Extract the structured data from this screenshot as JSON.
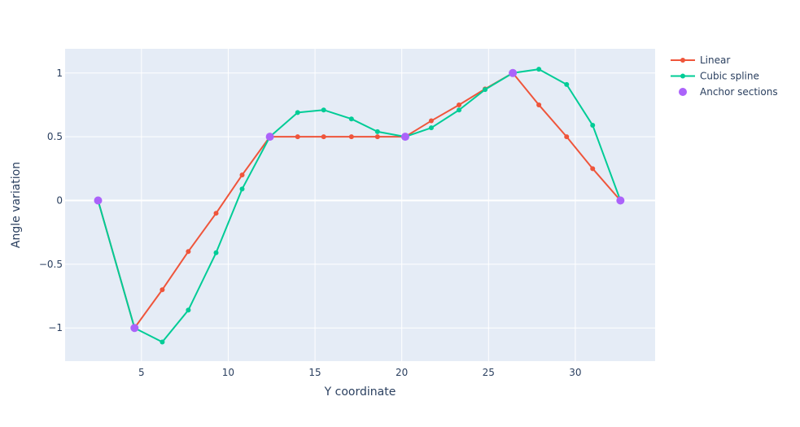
{
  "chart_data": {
    "type": "line",
    "title": "",
    "xlabel": "Y coordinate",
    "ylabel": "Angle variation",
    "xlim": [
      0.6,
      34.6
    ],
    "ylim": [
      -1.26,
      1.19
    ],
    "xticks": [
      5,
      10,
      15,
      20,
      25,
      30
    ],
    "xtick_labels": [
      "5",
      "10",
      "15",
      "20",
      "25",
      "30"
    ],
    "yticks": [
      -1,
      -0.5,
      0,
      0.5,
      1
    ],
    "ytick_labels": [
      "−1",
      "−0.5",
      "0",
      "0.5",
      "1"
    ],
    "grid": true,
    "legend_position": "top-right",
    "series": [
      {
        "name": "Linear",
        "mode": "lines+markers",
        "color": "#ef553b",
        "x": [
          2.5,
          4.6,
          6.2,
          7.7,
          9.3,
          10.8,
          12.4,
          14.0,
          15.5,
          17.1,
          18.6,
          20.2,
          21.7,
          23.3,
          24.8,
          26.4,
          27.9,
          29.5,
          31.0,
          32.6
        ],
        "y": [
          0,
          -1,
          -0.7,
          -0.4,
          -0.1,
          0.2,
          0.5,
          0.5,
          0.5,
          0.5,
          0.5,
          0.5,
          0.625,
          0.75,
          0.875,
          1,
          0.75,
          0.5,
          0.25,
          0
        ]
      },
      {
        "name": "Cubic spline",
        "mode": "lines+markers",
        "color": "#00cc96",
        "x": [
          2.5,
          4.6,
          6.2,
          7.7,
          9.3,
          10.8,
          12.4,
          14.0,
          15.5,
          17.1,
          18.6,
          20.2,
          21.7,
          23.3,
          24.8,
          26.4,
          27.9,
          29.5,
          31.0,
          32.6
        ],
        "y": [
          0,
          -1,
          -1.11,
          -0.86,
          -0.41,
          0.09,
          0.5,
          0.69,
          0.71,
          0.64,
          0.54,
          0.5,
          0.57,
          0.71,
          0.87,
          1,
          1.03,
          0.91,
          0.59,
          0
        ]
      },
      {
        "name": "Anchor sections",
        "mode": "markers",
        "color": "#ab63fa",
        "x": [
          2.5,
          4.6,
          12.4,
          20.2,
          26.4,
          32.6
        ],
        "y": [
          0,
          -1,
          0.5,
          0.5,
          1,
          0
        ]
      }
    ]
  }
}
